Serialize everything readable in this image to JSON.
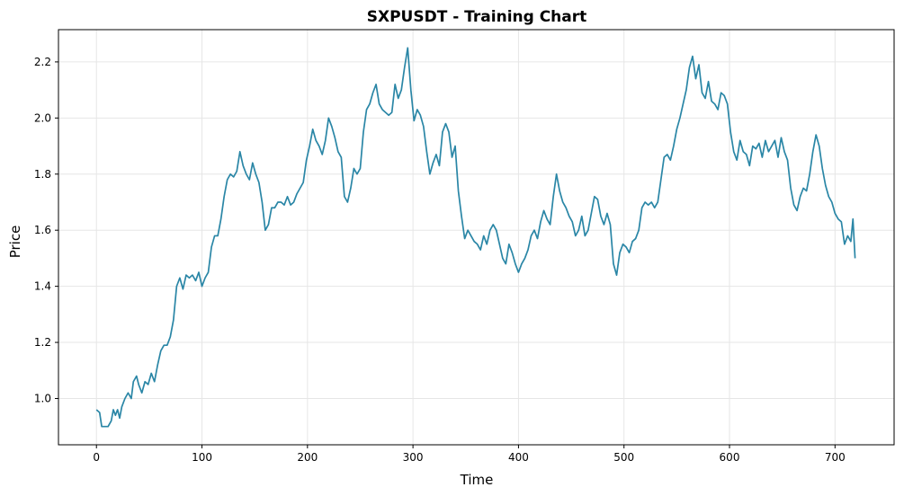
{
  "chart_data": {
    "type": "line",
    "title": "SXPUSDT - Training Chart",
    "xlabel": "Time",
    "ylabel": "Price",
    "xlim": [
      -36,
      756
    ],
    "ylim": [
      0.835,
      2.315
    ],
    "xticks": [
      0,
      100,
      200,
      300,
      400,
      500,
      600,
      700
    ],
    "xtick_labels": [
      "0",
      "100",
      "200",
      "300",
      "400",
      "500",
      "600",
      "700"
    ],
    "yticks": [
      1.0,
      1.2,
      1.4,
      1.6,
      1.8,
      2.0,
      2.2
    ],
    "ytick_labels": [
      "1.0",
      "1.2",
      "1.4",
      "1.6",
      "1.8",
      "2.0",
      "2.2"
    ],
    "grid": true,
    "line_color": "#2a86a6",
    "series": [
      {
        "points": [
          [
            0,
            0.96
          ],
          [
            3,
            0.95
          ],
          [
            5,
            0.9
          ],
          [
            8,
            0.9
          ],
          [
            11,
            0.9
          ],
          [
            14,
            0.92
          ],
          [
            16,
            0.96
          ],
          [
            18,
            0.94
          ],
          [
            20,
            0.96
          ],
          [
            22,
            0.93
          ],
          [
            24,
            0.97
          ],
          [
            27,
            1.0
          ],
          [
            30,
            1.02
          ],
          [
            33,
            1.0
          ],
          [
            35,
            1.06
          ],
          [
            38,
            1.08
          ],
          [
            40,
            1.05
          ],
          [
            43,
            1.02
          ],
          [
            46,
            1.06
          ],
          [
            49,
            1.05
          ],
          [
            52,
            1.09
          ],
          [
            55,
            1.06
          ],
          [
            58,
            1.12
          ],
          [
            61,
            1.17
          ],
          [
            64,
            1.19
          ],
          [
            67,
            1.19
          ],
          [
            70,
            1.22
          ],
          [
            73,
            1.28
          ],
          [
            76,
            1.4
          ],
          [
            79,
            1.43
          ],
          [
            82,
            1.39
          ],
          [
            85,
            1.44
          ],
          [
            88,
            1.43
          ],
          [
            91,
            1.44
          ],
          [
            94,
            1.42
          ],
          [
            97,
            1.45
          ],
          [
            100,
            1.4
          ],
          [
            103,
            1.43
          ],
          [
            106,
            1.45
          ],
          [
            109,
            1.54
          ],
          [
            112,
            1.58
          ],
          [
            115,
            1.58
          ],
          [
            118,
            1.64
          ],
          [
            121,
            1.72
          ],
          [
            124,
            1.78
          ],
          [
            127,
            1.8
          ],
          [
            130,
            1.79
          ],
          [
            133,
            1.81
          ],
          [
            136,
            1.88
          ],
          [
            139,
            1.83
          ],
          [
            142,
            1.8
          ],
          [
            145,
            1.78
          ],
          [
            148,
            1.84
          ],
          [
            151,
            1.8
          ],
          [
            154,
            1.77
          ],
          [
            157,
            1.7
          ],
          [
            160,
            1.6
          ],
          [
            163,
            1.62
          ],
          [
            166,
            1.68
          ],
          [
            169,
            1.68
          ],
          [
            172,
            1.7
          ],
          [
            175,
            1.7
          ],
          [
            178,
            1.69
          ],
          [
            181,
            1.72
          ],
          [
            184,
            1.69
          ],
          [
            187,
            1.7
          ],
          [
            190,
            1.73
          ],
          [
            193,
            1.75
          ],
          [
            196,
            1.77
          ],
          [
            199,
            1.85
          ],
          [
            202,
            1.9
          ],
          [
            205,
            1.96
          ],
          [
            208,
            1.92
          ],
          [
            211,
            1.9
          ],
          [
            214,
            1.87
          ],
          [
            217,
            1.92
          ],
          [
            220,
            2.0
          ],
          [
            223,
            1.97
          ],
          [
            226,
            1.93
          ],
          [
            229,
            1.88
          ],
          [
            232,
            1.86
          ],
          [
            235,
            1.72
          ],
          [
            238,
            1.7
          ],
          [
            241,
            1.75
          ],
          [
            244,
            1.82
          ],
          [
            247,
            1.8
          ],
          [
            250,
            1.82
          ],
          [
            253,
            1.95
          ],
          [
            256,
            2.03
          ],
          [
            259,
            2.05
          ],
          [
            262,
            2.09
          ],
          [
            265,
            2.12
          ],
          [
            268,
            2.05
          ],
          [
            271,
            2.03
          ],
          [
            274,
            2.02
          ],
          [
            277,
            2.01
          ],
          [
            280,
            2.02
          ],
          [
            283,
            2.12
          ],
          [
            286,
            2.07
          ],
          [
            289,
            2.1
          ],
          [
            292,
            2.18
          ],
          [
            295,
            2.25
          ],
          [
            298,
            2.1
          ],
          [
            301,
            1.99
          ],
          [
            304,
            2.03
          ],
          [
            307,
            2.01
          ],
          [
            310,
            1.97
          ],
          [
            313,
            1.88
          ],
          [
            316,
            1.8
          ],
          [
            319,
            1.84
          ],
          [
            322,
            1.87
          ],
          [
            325,
            1.83
          ],
          [
            328,
            1.95
          ],
          [
            331,
            1.98
          ],
          [
            334,
            1.95
          ],
          [
            337,
            1.86
          ],
          [
            340,
            1.9
          ],
          [
            343,
            1.74
          ],
          [
            346,
            1.65
          ],
          [
            349,
            1.57
          ],
          [
            352,
            1.6
          ],
          [
            355,
            1.58
          ],
          [
            358,
            1.56
          ],
          [
            361,
            1.55
          ],
          [
            364,
            1.53
          ],
          [
            367,
            1.58
          ],
          [
            370,
            1.55
          ],
          [
            373,
            1.6
          ],
          [
            376,
            1.62
          ],
          [
            379,
            1.6
          ],
          [
            382,
            1.55
          ],
          [
            385,
            1.5
          ],
          [
            388,
            1.48
          ],
          [
            391,
            1.55
          ],
          [
            394,
            1.52
          ],
          [
            397,
            1.48
          ],
          [
            400,
            1.45
          ],
          [
            403,
            1.48
          ],
          [
            406,
            1.5
          ],
          [
            409,
            1.53
          ],
          [
            412,
            1.58
          ],
          [
            415,
            1.6
          ],
          [
            418,
            1.57
          ],
          [
            421,
            1.63
          ],
          [
            424,
            1.67
          ],
          [
            427,
            1.64
          ],
          [
            430,
            1.62
          ],
          [
            433,
            1.72
          ],
          [
            436,
            1.8
          ],
          [
            439,
            1.74
          ],
          [
            442,
            1.7
          ],
          [
            445,
            1.68
          ],
          [
            448,
            1.65
          ],
          [
            451,
            1.63
          ],
          [
            454,
            1.58
          ],
          [
            457,
            1.6
          ],
          [
            460,
            1.65
          ],
          [
            463,
            1.58
          ],
          [
            466,
            1.6
          ],
          [
            469,
            1.66
          ],
          [
            472,
            1.72
          ],
          [
            475,
            1.71
          ],
          [
            478,
            1.65
          ],
          [
            481,
            1.62
          ],
          [
            484,
            1.66
          ],
          [
            487,
            1.62
          ],
          [
            490,
            1.48
          ],
          [
            493,
            1.44
          ],
          [
            496,
            1.52
          ],
          [
            499,
            1.55
          ],
          [
            502,
            1.54
          ],
          [
            505,
            1.52
          ],
          [
            508,
            1.56
          ],
          [
            511,
            1.57
          ],
          [
            514,
            1.6
          ],
          [
            517,
            1.68
          ],
          [
            520,
            1.7
          ],
          [
            523,
            1.69
          ],
          [
            526,
            1.7
          ],
          [
            529,
            1.68
          ],
          [
            532,
            1.7
          ],
          [
            535,
            1.78
          ],
          [
            538,
            1.86
          ],
          [
            541,
            1.87
          ],
          [
            544,
            1.85
          ],
          [
            547,
            1.9
          ],
          [
            550,
            1.96
          ],
          [
            553,
            2.0
          ],
          [
            556,
            2.05
          ],
          [
            559,
            2.1
          ],
          [
            562,
            2.18
          ],
          [
            565,
            2.22
          ],
          [
            568,
            2.14
          ],
          [
            571,
            2.19
          ],
          [
            574,
            2.09
          ],
          [
            577,
            2.07
          ],
          [
            580,
            2.13
          ],
          [
            583,
            2.06
          ],
          [
            586,
            2.05
          ],
          [
            589,
            2.03
          ],
          [
            592,
            2.09
          ],
          [
            595,
            2.08
          ],
          [
            598,
            2.05
          ],
          [
            601,
            1.95
          ],
          [
            604,
            1.88
          ],
          [
            607,
            1.85
          ],
          [
            610,
            1.92
          ],
          [
            613,
            1.88
          ],
          [
            616,
            1.87
          ],
          [
            619,
            1.83
          ],
          [
            622,
            1.9
          ],
          [
            625,
            1.89
          ],
          [
            628,
            1.91
          ],
          [
            631,
            1.86
          ],
          [
            634,
            1.92
          ],
          [
            637,
            1.88
          ],
          [
            640,
            1.9
          ],
          [
            643,
            1.92
          ],
          [
            646,
            1.86
          ],
          [
            649,
            1.93
          ],
          [
            652,
            1.88
          ],
          [
            655,
            1.85
          ],
          [
            658,
            1.75
          ],
          [
            661,
            1.69
          ],
          [
            664,
            1.67
          ],
          [
            667,
            1.72
          ],
          [
            670,
            1.75
          ],
          [
            673,
            1.74
          ],
          [
            676,
            1.8
          ],
          [
            679,
            1.88
          ],
          [
            682,
            1.94
          ],
          [
            685,
            1.9
          ],
          [
            688,
            1.82
          ],
          [
            691,
            1.76
          ],
          [
            694,
            1.72
          ],
          [
            697,
            1.7
          ],
          [
            700,
            1.66
          ],
          [
            703,
            1.64
          ],
          [
            706,
            1.63
          ],
          [
            709,
            1.55
          ],
          [
            712,
            1.58
          ],
          [
            715,
            1.56
          ],
          [
            717,
            1.64
          ],
          [
            719,
            1.5
          ]
        ]
      }
    ]
  }
}
